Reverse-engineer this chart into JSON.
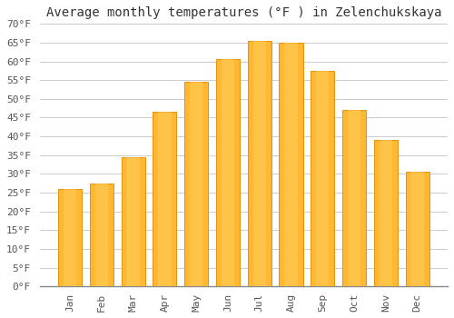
{
  "title": "Average monthly temperatures (°F ) in Zelenchukskaya",
  "months": [
    "Jan",
    "Feb",
    "Mar",
    "Apr",
    "May",
    "Jun",
    "Jul",
    "Aug",
    "Sep",
    "Oct",
    "Nov",
    "Dec"
  ],
  "values": [
    26,
    27.5,
    34.5,
    46.5,
    54.5,
    60.5,
    65.5,
    65,
    57.5,
    47,
    39,
    30.5
  ],
  "bar_color": "#FFB300",
  "bar_edge_color": "#E8900A",
  "background_color": "#FFFFFF",
  "grid_color": "#CCCCCC",
  "ylim": [
    0,
    70
  ],
  "ytick_step": 5,
  "title_fontsize": 10,
  "tick_fontsize": 8,
  "font_family": "monospace"
}
